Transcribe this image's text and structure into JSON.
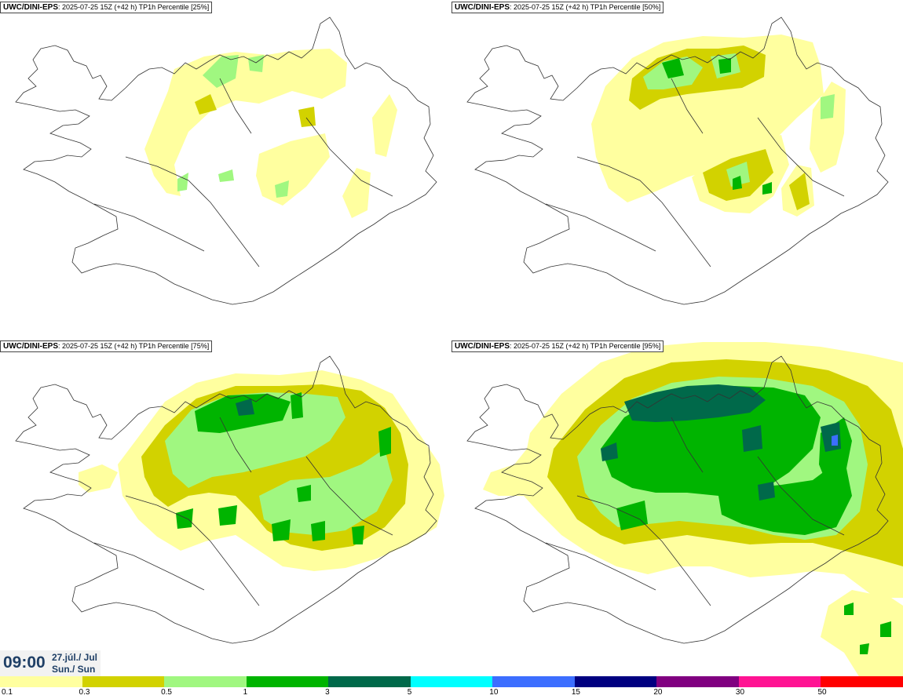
{
  "panels": [
    {
      "model": "UWC/DINI-EPS",
      "info": ": 2025-07-25 15Z (+42 h) TP1h Percentile [25%]"
    },
    {
      "model": "UWC/DINI-EPS",
      "info": ": 2025-07-25 15Z (+42 h) TP1h Percentile [50%]"
    },
    {
      "model": "UWC/DINI-EPS",
      "info": ": 2025-07-25 15Z (+42 h) TP1h Percentile [75%]"
    },
    {
      "model": "UWC/DINI-EPS",
      "info": ": 2025-07-25 15Z (+42 h) TP1h Percentile [95%]"
    }
  ],
  "valid_time": {
    "time": "09:00",
    "date": "27.júl./ Jul",
    "day": "Sun./ Sun"
  },
  "legend": {
    "ticks": [
      "0.1",
      "0.3",
      "0.5",
      "1",
      "3",
      "5",
      "10",
      "15",
      "20",
      "30",
      "50"
    ],
    "colors": [
      "#ffff9f",
      "#d2d200",
      "#a0f780",
      "#00b400",
      "#00694a",
      "#00ffff",
      "#3c6eff",
      "#000080",
      "#800080",
      "#ff1493",
      "#ff0000"
    ]
  }
}
